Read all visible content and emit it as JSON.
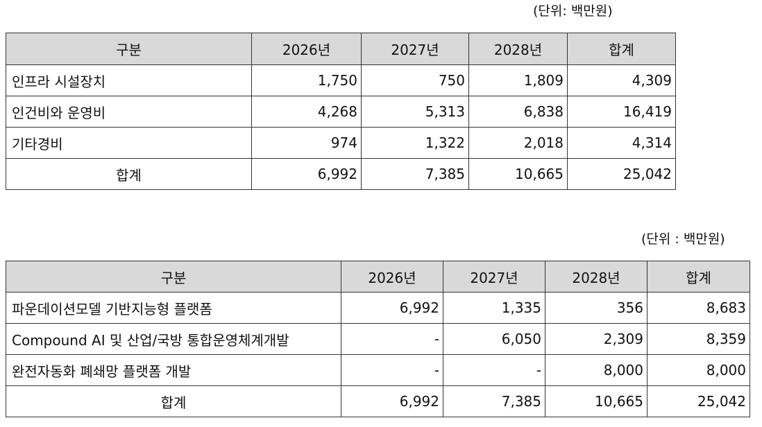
{
  "table1": {
    "unit": "(단위: 백만원)",
    "headers": [
      "구분",
      "2026년",
      "2027년",
      "2028년",
      "합계"
    ],
    "rows": [
      {
        "label": "인프라 시설장치",
        "y2026": "1,750",
        "y2027": "750",
        "y2028": "1,809",
        "total": "4,309"
      },
      {
        "label": "인건비와 운영비",
        "y2026": "4,268",
        "y2027": "5,313",
        "y2028": "6,838",
        "total": "16,419"
      },
      {
        "label": "기타경비",
        "y2026": "974",
        "y2027": "1,322",
        "y2028": "2,018",
        "total": "4,314"
      }
    ],
    "total_row": {
      "label": "합계",
      "y2026": "6,992",
      "y2027": "7,385",
      "y2028": "10,665",
      "total": "25,042"
    }
  },
  "table2": {
    "unit": "(단위 : 백만원)",
    "headers": [
      "구분",
      "2026년",
      "2027년",
      "2028년",
      "합계"
    ],
    "rows": [
      {
        "label": "파운데이션모델 기반지능형 플랫폼",
        "y2026": "6,992",
        "y2027": "1,335",
        "y2028": "356",
        "total": "8,683"
      },
      {
        "label": "Compound AI 및 산업/국방 통합운영체계개발",
        "y2026": "-",
        "y2027": "6,050",
        "y2028": "2,309",
        "total": "8,359"
      },
      {
        "label": "완전자동화 폐쇄망 플랫폼 개발",
        "y2026": "-",
        "y2027": "-",
        "y2028": "8,000",
        "total": "8,000"
      }
    ],
    "total_row": {
      "label": "합계",
      "y2026": "6,992",
      "y2027": "7,385",
      "y2028": "10,665",
      "total": "25,042"
    }
  }
}
